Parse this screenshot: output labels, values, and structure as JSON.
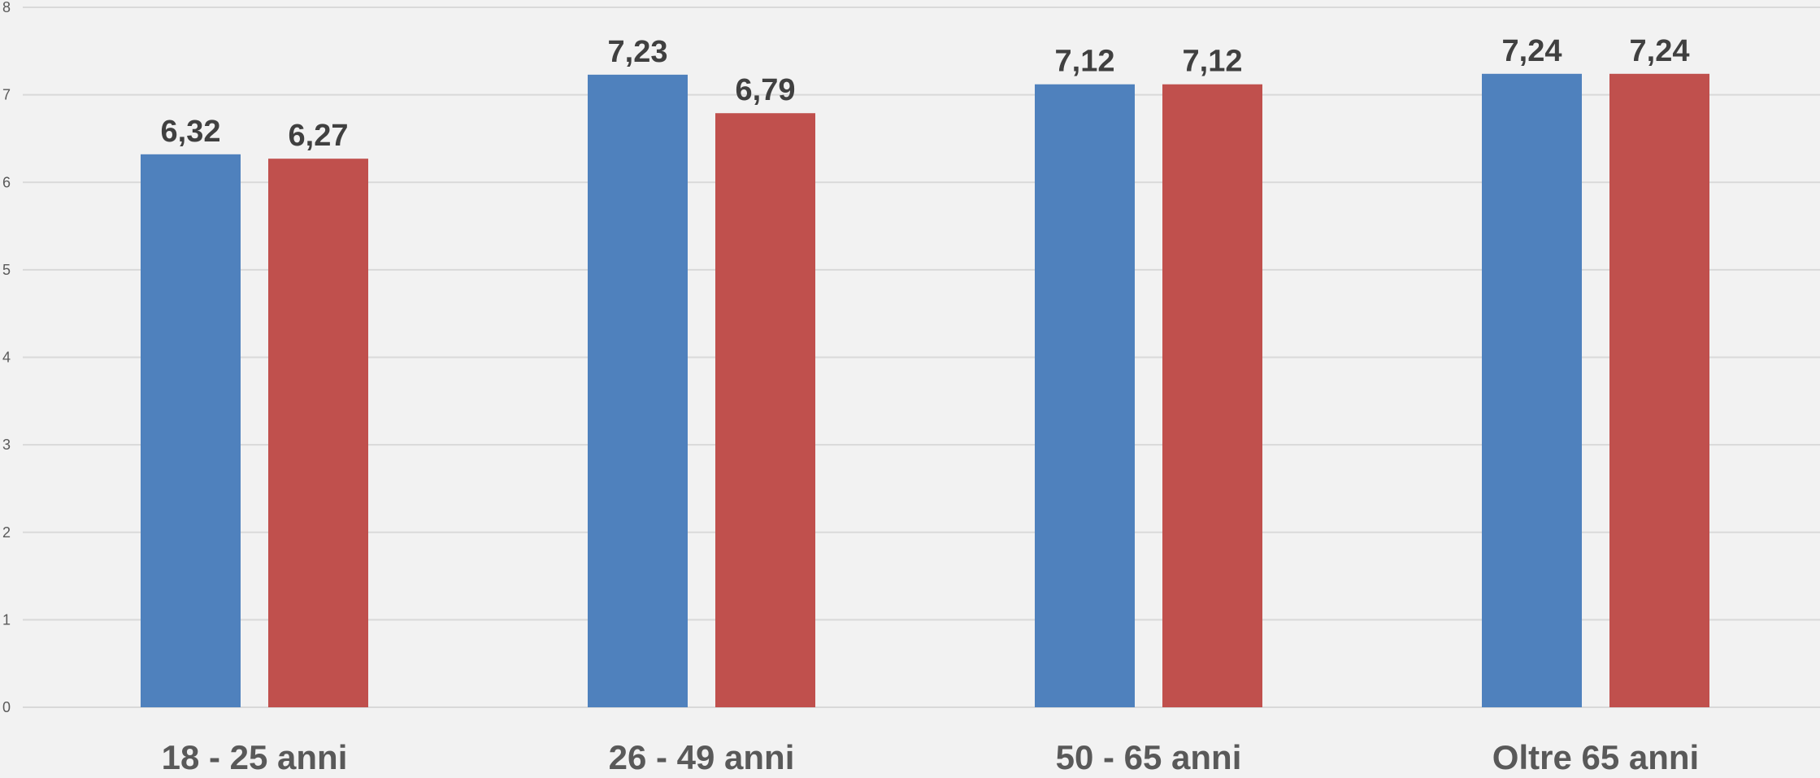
{
  "chart_data": {
    "type": "bar",
    "categories": [
      "18 - 25 anni",
      "26 - 49 anni",
      "50 - 65 anni",
      "Oltre 65 anni"
    ],
    "series": [
      {
        "values": [
          6.32,
          7.23,
          7.12,
          7.24
        ],
        "labels": [
          "6,32",
          "7,23",
          "7,12",
          "7,24"
        ],
        "color": "#4f81bd"
      },
      {
        "values": [
          6.27,
          6.79,
          7.12,
          7.24
        ],
        "labels": [
          "6,27",
          "6,79",
          "7,12",
          "7,24"
        ],
        "color": "#c0504d"
      }
    ],
    "yticks": [
      "0",
      "1",
      "2",
      "3",
      "4",
      "5",
      "6",
      "7",
      "8"
    ],
    "ylim": [
      0,
      8
    ],
    "grid": true,
    "legend": "none",
    "title": "",
    "xlabel": "",
    "ylabel": ""
  }
}
